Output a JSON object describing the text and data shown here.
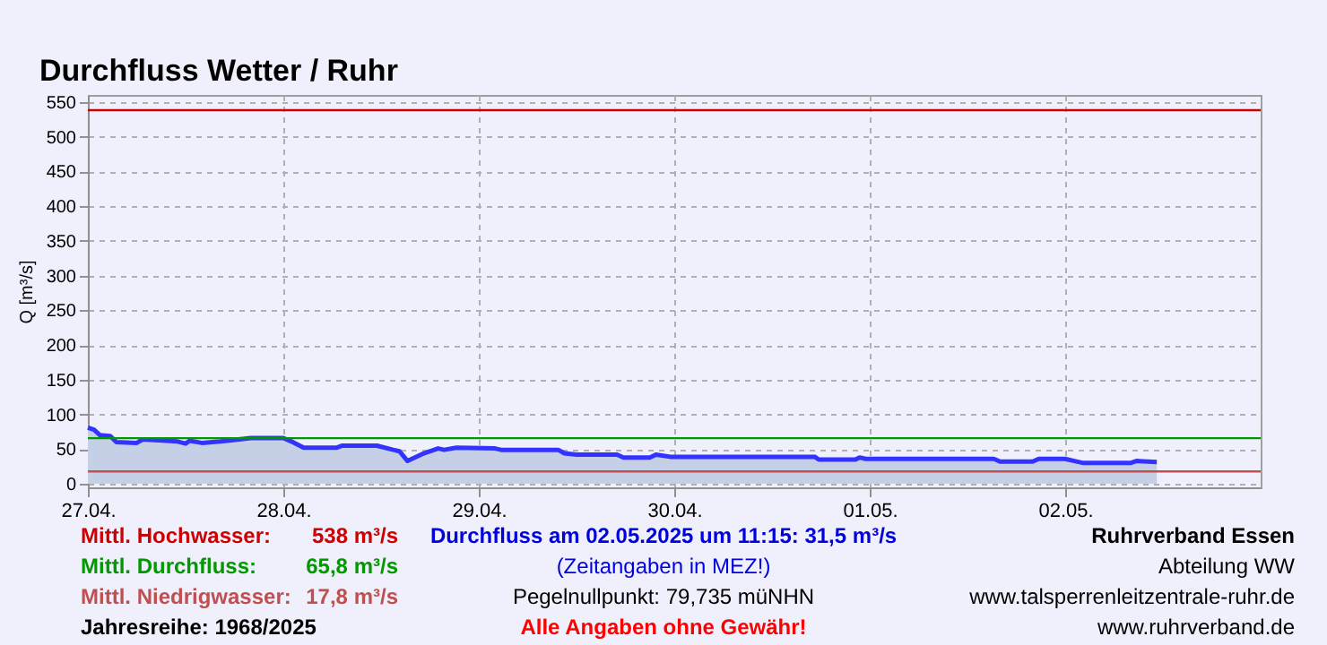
{
  "chart_data": {
    "type": "area",
    "title": "Durchfluss Wetter / Ruhr",
    "ylabel": "Q [m³/s]",
    "x": [
      "2025-04-27T00:00",
      "2025-04-27T00:45",
      "2025-04-27T01:30",
      "2025-04-27T02:45",
      "2025-04-27T03:30",
      "2025-04-27T06:00",
      "2025-04-27T06:45",
      "2025-04-27T11:00",
      "2025-04-27T12:00",
      "2025-04-27T12:30",
      "2025-04-27T14:00",
      "2025-04-27T16:15",
      "2025-04-27T20:00",
      "2025-04-28T00:00",
      "2025-04-28T01:00",
      "2025-04-28T02:30",
      "2025-04-28T06:30",
      "2025-04-28T07:15",
      "2025-04-28T11:30",
      "2025-04-28T13:30",
      "2025-04-28T14:15",
      "2025-04-28T15:15",
      "2025-04-28T17:15",
      "2025-04-28T19:00",
      "2025-04-28T19:45",
      "2025-04-28T21:15",
      "2025-04-29T02:00",
      "2025-04-29T02:45",
      "2025-04-29T09:45",
      "2025-04-29T10:30",
      "2025-04-29T12:00",
      "2025-04-29T17:00",
      "2025-04-29T17:45",
      "2025-04-29T21:00",
      "2025-04-29T21:45",
      "2025-04-29T23:30",
      "2025-04-30T17:15",
      "2025-04-30T17:45",
      "2025-04-30T22:15",
      "2025-04-30T22:45",
      "2025-04-30T23:30",
      "2025-05-01T15:15",
      "2025-05-01T16:00",
      "2025-05-01T20:00",
      "2025-05-01T20:45",
      "2025-05-02T00:00",
      "2025-05-02T01:30",
      "2025-05-02T02:15",
      "2025-05-02T08:00",
      "2025-05-02T08:45",
      "2025-05-02T11:15"
    ],
    "series": [
      {
        "color": "#3333ff",
        "values": [
          81,
          78,
          70,
          69,
          60,
          59,
          64,
          61,
          58,
          62,
          59,
          61,
          66,
          66,
          61,
          52,
          52,
          55,
          55,
          49,
          47,
          33,
          44,
          51,
          49,
          52,
          51,
          49,
          49,
          44,
          42,
          42,
          38,
          38,
          42,
          39,
          39,
          35,
          35,
          38,
          36,
          36,
          32,
          32,
          36,
          36,
          32,
          30,
          30,
          33,
          31.5
        ]
      }
    ],
    "xlim": [
      "2025-04-27T00:00",
      "2025-05-03T00:00"
    ],
    "xticks": [
      {
        "value": "2025-04-27",
        "label": "27.04."
      },
      {
        "value": "2025-04-28",
        "label": "28.04."
      },
      {
        "value": "2025-04-29",
        "label": "29.04."
      },
      {
        "value": "2025-04-30",
        "label": "30.04."
      },
      {
        "value": "2025-05-01",
        "label": "01.05."
      },
      {
        "value": "2025-05-02",
        "label": "02.05."
      }
    ],
    "ylim": [
      -5,
      560
    ],
    "yticks": [
      0,
      50,
      100,
      150,
      200,
      250,
      300,
      350,
      400,
      450,
      500,
      550
    ],
    "grid": true,
    "line_style": "solid",
    "ref_lines": [
      {
        "axis": "y",
        "value": 538,
        "label": "Mittl. Hochwasser:",
        "color": "#cc0000"
      },
      {
        "axis": "y",
        "value": 65.8,
        "label": "Mittl. Durchfluss:",
        "color": "#009900"
      },
      {
        "axis": "y",
        "value": 17.8,
        "label": "Mittl. Niedrigwasser:",
        "color": "#c05050"
      }
    ],
    "annotations": [
      "538 m³/s",
      "65,8 m³/s",
      "17,8 m³/s",
      "Jahresreihe: 1968/2025",
      "Durchfluss am 02.05.2025 um 11:15: 31,5 m³/s",
      "(Zeitangaben in MEZ!)",
      "Pegelnullpunkt:   79,735 müNHN",
      "Alle Angaben ohne Gewähr!",
      "Ruhrverband Essen",
      "Abteilung WW",
      "www.talsperrenleitzentrale-ruhr.de",
      "www.ruhrverband.de"
    ]
  }
}
